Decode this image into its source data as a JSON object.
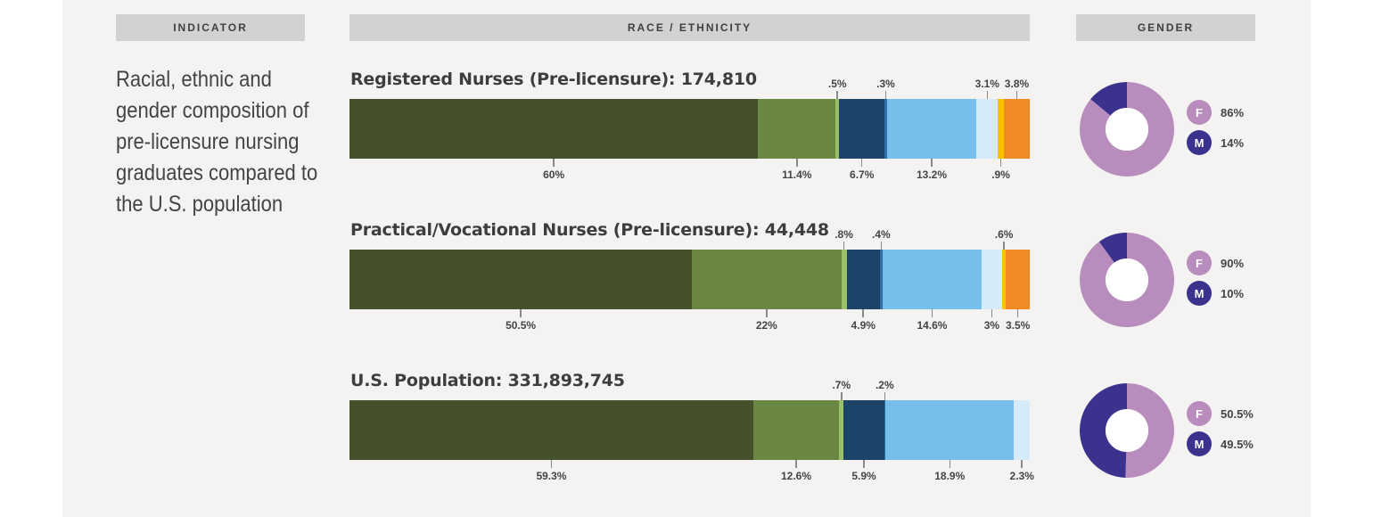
{
  "headers": {
    "indicator": "INDICATOR",
    "race": "RACE / ETHNICITY",
    "gender": "GENDER"
  },
  "indicator_text": "Racial, ethnic and gender composition of pre-licensure nursing graduates compared to the U.S. population",
  "colors": {
    "segments": [
      "#45512B",
      "#6A8744",
      "#9BC06A",
      "#1B4468",
      "#2E6FA8",
      "#77BFEB",
      "#D6EBFA",
      "#F7C300",
      "#F08B23"
    ],
    "female": "#B88DBE",
    "male": "#3B328D"
  },
  "chart_data": [
    {
      "type": "bar",
      "stacked": true,
      "orientation": "horizontal",
      "title": "Registered Nurses (Pre-licensure): 174,810",
      "values": [
        60,
        11.4,
        0.5,
        6.7,
        0.3,
        13.2,
        3.1,
        0.9,
        3.8
      ],
      "labels": [
        "60%",
        "11.4%",
        ".5%",
        "6.7%",
        ".3%",
        "13.2%",
        "3.1%",
        ".9%",
        "3.8%"
      ],
      "label_positions": [
        "below",
        "below",
        "above",
        "below",
        "above",
        "below",
        "above",
        "below",
        "above"
      ],
      "gender": {
        "type": "pie",
        "donut": true,
        "female": 86,
        "male": 14,
        "female_label": "86%",
        "male_label": "14%"
      }
    },
    {
      "type": "bar",
      "stacked": true,
      "orientation": "horizontal",
      "title": "Practical/Vocational Nurses (Pre-licensure): 44,448",
      "values": [
        50.5,
        22,
        0.8,
        4.9,
        0.4,
        14.6,
        3,
        0.6,
        3.5
      ],
      "labels": [
        "50.5%",
        "22%",
        ".8%",
        "4.9%",
        ".4%",
        "14.6%",
        "3%",
        ".6%",
        "3.5%"
      ],
      "label_positions": [
        "below",
        "below",
        "above",
        "below",
        "above",
        "below",
        "below",
        "above",
        "below"
      ],
      "gender": {
        "type": "pie",
        "donut": true,
        "female": 90,
        "male": 10,
        "female_label": "90%",
        "male_label": "10%"
      }
    },
    {
      "type": "bar",
      "stacked": true,
      "orientation": "horizontal",
      "title": "U.S. Population: 331,893,745",
      "values": [
        59.3,
        12.6,
        0.7,
        5.9,
        0.2,
        18.9,
        2.3
      ],
      "labels": [
        "59.3%",
        "12.6%",
        ".7%",
        "5.9%",
        ".2%",
        "18.9%",
        "2.3%"
      ],
      "label_positions": [
        "below",
        "below",
        "above",
        "below",
        "above",
        "below",
        "below"
      ],
      "gender": {
        "type": "pie",
        "donut": true,
        "female": 50.5,
        "male": 49.5,
        "female_label": "50.5%",
        "male_label": "49.5%"
      }
    }
  ],
  "legend": {
    "female_letter": "F",
    "male_letter": "M"
  }
}
